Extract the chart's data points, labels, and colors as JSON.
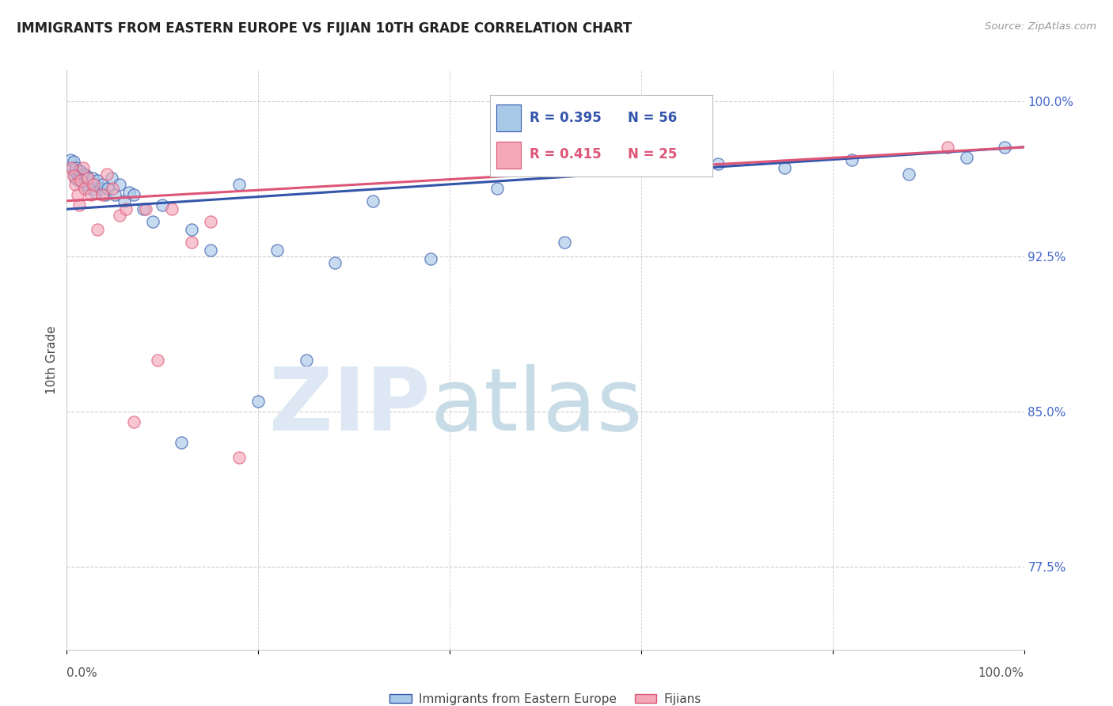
{
  "title": "IMMIGRANTS FROM EASTERN EUROPE VS FIJIAN 10TH GRADE CORRELATION CHART",
  "source": "Source: ZipAtlas.com",
  "ylabel": "10th Grade",
  "ylabel_right_ticks": [
    "100.0%",
    "92.5%",
    "85.0%",
    "77.5%"
  ],
  "ylabel_right_vals": [
    1.0,
    0.925,
    0.85,
    0.775
  ],
  "xlim": [
    0.0,
    1.0
  ],
  "ylim": [
    0.735,
    1.015
  ],
  "legend_blue_r": "R = 0.395",
  "legend_blue_n": "N = 56",
  "legend_pink_r": "R = 0.415",
  "legend_pink_n": "N = 25",
  "legend_label_blue": "Immigrants from Eastern Europe",
  "legend_label_pink": "Fijians",
  "blue_color": "#A8C8E8",
  "pink_color": "#F4A8B8",
  "trendline_blue_color": "#3355AA",
  "trendline_pink_color": "#DD5577",
  "r_n_blue_color": "#3355AA",
  "r_n_pink_color": "#DD5577",
  "right_tick_color": "#4466CC",
  "background_color": "#ffffff",
  "grid_color": "#cccccc",
  "blue_scatter_x": [
    0.004,
    0.006,
    0.007,
    0.008,
    0.009,
    0.01,
    0.011,
    0.012,
    0.013,
    0.014,
    0.015,
    0.016,
    0.017,
    0.018,
    0.019,
    0.02,
    0.021,
    0.022,
    0.023,
    0.025,
    0.027,
    0.028,
    0.03,
    0.032,
    0.035,
    0.038,
    0.04,
    0.043,
    0.047,
    0.05,
    0.055,
    0.06,
    0.065,
    0.07,
    0.08,
    0.09,
    0.1,
    0.12,
    0.13,
    0.15,
    0.18,
    0.2,
    0.22,
    0.25,
    0.28,
    0.32,
    0.38,
    0.45,
    0.52,
    0.6,
    0.68,
    0.75,
    0.82,
    0.88,
    0.94,
    0.98
  ],
  "blue_scatter_y": [
    0.972,
    0.968,
    0.971,
    0.966,
    0.963,
    0.968,
    0.965,
    0.962,
    0.967,
    0.964,
    0.966,
    0.963,
    0.961,
    0.965,
    0.962,
    0.964,
    0.96,
    0.963,
    0.958,
    0.961,
    0.963,
    0.958,
    0.956,
    0.962,
    0.958,
    0.96,
    0.955,
    0.958,
    0.963,
    0.955,
    0.96,
    0.952,
    0.956,
    0.955,
    0.948,
    0.942,
    0.95,
    0.835,
    0.938,
    0.928,
    0.96,
    0.855,
    0.928,
    0.875,
    0.922,
    0.952,
    0.924,
    0.958,
    0.932,
    0.972,
    0.97,
    0.968,
    0.972,
    0.965,
    0.973,
    0.978
  ],
  "pink_scatter_x": [
    0.005,
    0.007,
    0.009,
    0.011,
    0.013,
    0.015,
    0.017,
    0.019,
    0.022,
    0.025,
    0.028,
    0.032,
    0.037,
    0.042,
    0.048,
    0.055,
    0.062,
    0.07,
    0.082,
    0.095,
    0.11,
    0.13,
    0.15,
    0.18,
    0.92
  ],
  "pink_scatter_y": [
    0.968,
    0.964,
    0.96,
    0.955,
    0.95,
    0.962,
    0.968,
    0.958,
    0.963,
    0.955,
    0.96,
    0.938,
    0.955,
    0.965,
    0.958,
    0.945,
    0.948,
    0.845,
    0.948,
    0.875,
    0.948,
    0.932,
    0.942,
    0.828,
    0.978
  ],
  "blue_trend_x0": 0.0,
  "blue_trend_x1": 1.0,
  "blue_trend_y0": 0.948,
  "blue_trend_y1": 0.978,
  "pink_trend_x0": 0.0,
  "pink_trend_x1": 1.0,
  "pink_trend_y0": 0.952,
  "pink_trend_y1": 0.978
}
